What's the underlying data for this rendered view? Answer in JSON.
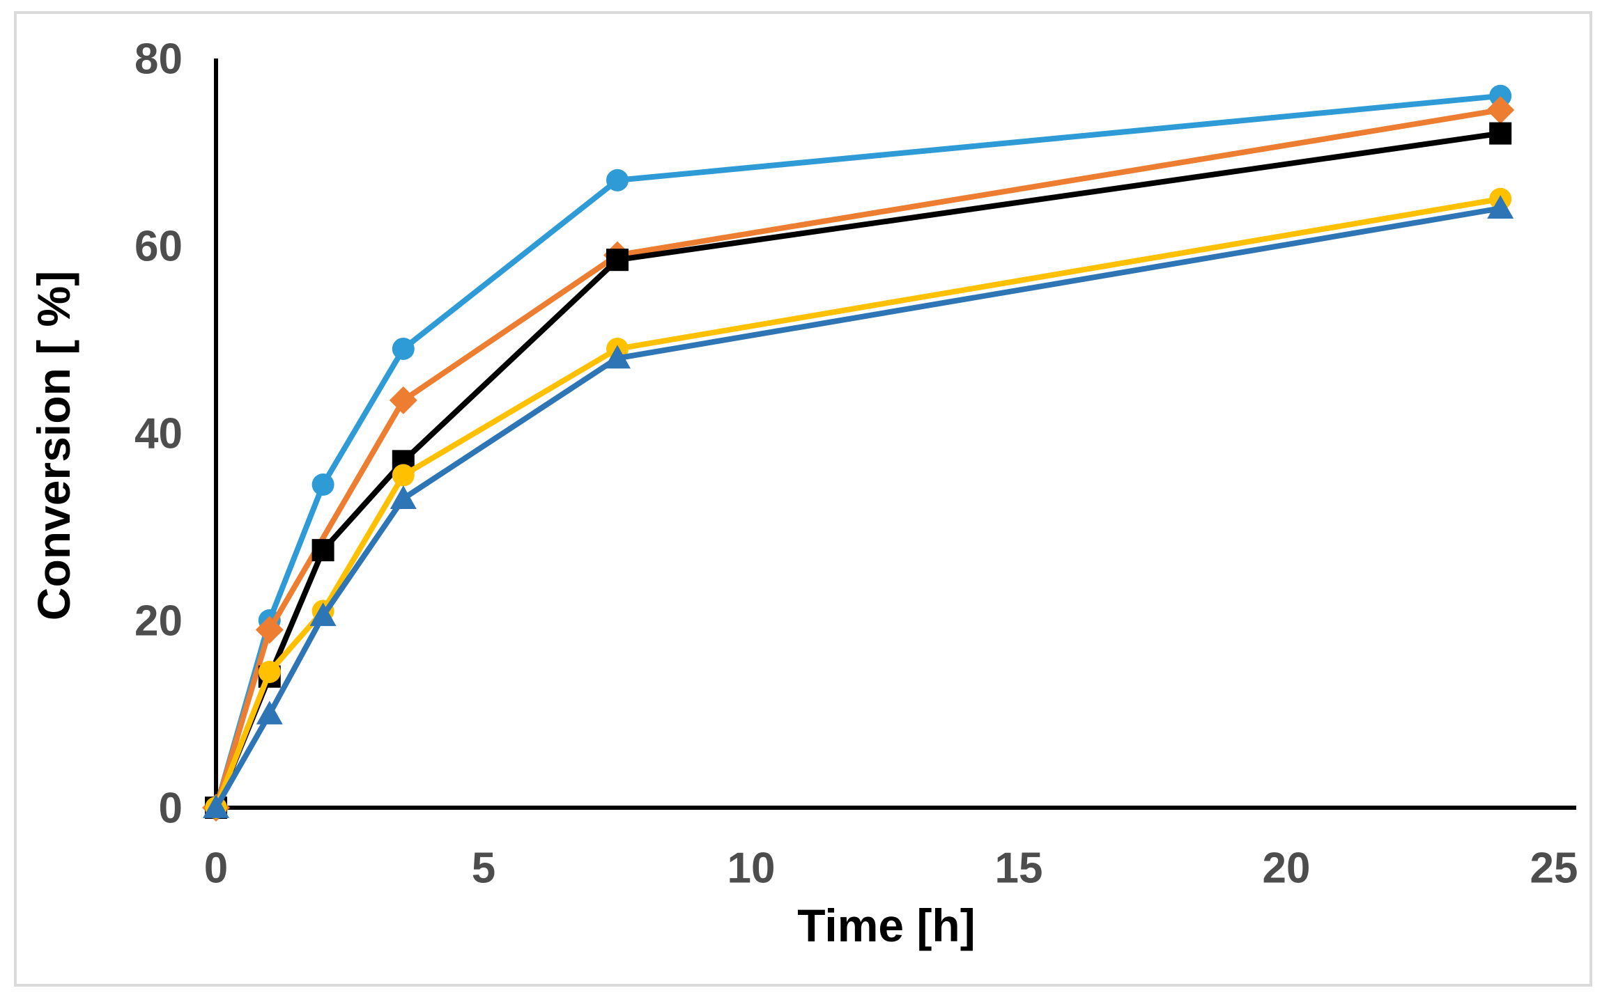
{
  "figure": {
    "title": "",
    "x_title": "Time [h]",
    "y_title": "Conversion [ %]"
  },
  "chart_data": {
    "type": "line",
    "title": "",
    "xlabel": "Time [h]",
    "ylabel": "Conversion [ %]",
    "xlim": [
      0,
      25
    ],
    "ylim": [
      0,
      80
    ],
    "x_ticks": [
      "0",
      "5",
      "10",
      "15",
      "20",
      "25"
    ],
    "x_tick_values": [
      0,
      5,
      10,
      15,
      20,
      25
    ],
    "y_ticks": [
      "0",
      "20",
      "40",
      "60",
      "80"
    ],
    "y_tick_values": [
      0,
      20,
      40,
      60,
      80
    ],
    "grid": false,
    "legend": "none",
    "series": [
      {
        "name": "light-blue-circles",
        "color": "#2E9BD6",
        "marker": "circle",
        "x": [
          0,
          1,
          2,
          3.5,
          7.5,
          24
        ],
        "y": [
          0,
          20,
          34.5,
          49,
          67,
          76
        ]
      },
      {
        "name": "orange-diamonds",
        "color": "#ED7D31",
        "marker": "diamond",
        "x": [
          0,
          1,
          3.5,
          7.5,
          24
        ],
        "y": [
          0,
          19,
          43.5,
          59,
          74.5
        ]
      },
      {
        "name": "black-squares",
        "color": "#000000",
        "marker": "square",
        "x": [
          0,
          1,
          2,
          3.5,
          7.5,
          24
        ],
        "y": [
          0,
          14,
          27.5,
          37,
          58.5,
          72
        ]
      },
      {
        "name": "yellow-circles",
        "color": "#FFC000",
        "marker": "circle",
        "x": [
          0,
          1,
          2,
          3.5,
          7.5,
          24
        ],
        "y": [
          0,
          14.5,
          21,
          35.5,
          49,
          65
        ]
      },
      {
        "name": "blue-triangles",
        "color": "#2E75B6",
        "marker": "triangle-up",
        "x": [
          0,
          1,
          2,
          3.5,
          7.5,
          24
        ],
        "y": [
          0,
          10,
          20.5,
          33,
          48,
          64
        ]
      }
    ],
    "style": {
      "axis_color": "#000000",
      "tick_label_color": "#4D4D4D",
      "frame_color": "#DBDBDB",
      "background": "#FFFFFF",
      "line_width": 8,
      "marker_size": 32
    }
  }
}
